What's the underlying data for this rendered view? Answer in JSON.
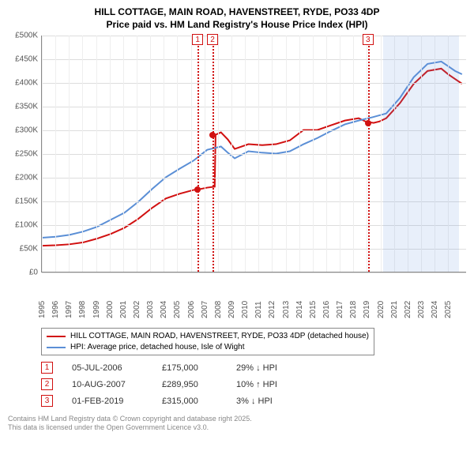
{
  "title": {
    "line1": "HILL COTTAGE, MAIN ROAD, HAVENSTREET, RYDE, PO33 4DP",
    "line2": "Price paid vs. HM Land Registry's House Price Index (HPI)",
    "fontsize": 12
  },
  "chart": {
    "type": "line",
    "background_color": "#ffffff",
    "grid_color": "#dddddd",
    "x": {
      "min": 1995,
      "max": 2025.8,
      "ticks": [
        1995,
        1996,
        1997,
        1998,
        1999,
        2000,
        2001,
        2002,
        2003,
        2004,
        2005,
        2006,
        2007,
        2008,
        2009,
        2010,
        2011,
        2012,
        2013,
        2014,
        2015,
        2016,
        2017,
        2018,
        2019,
        2020,
        2021,
        2022,
        2023,
        2024,
        2025
      ]
    },
    "y": {
      "min": 0,
      "max": 500000,
      "step": 50000,
      "labels": [
        "£0",
        "£50K",
        "£100K",
        "£150K",
        "£200K",
        "£250K",
        "£300K",
        "£350K",
        "£400K",
        "£450K",
        "£500K"
      ]
    },
    "shade": {
      "from": 2020.2,
      "to": 2025.8,
      "color": "rgba(100,150,220,0.15)"
    },
    "series": [
      {
        "id": "price_paid",
        "label": "HILL COTTAGE, MAIN ROAD, HAVENSTREET, RYDE, PO33 4DP (detached house)",
        "color": "#d11010",
        "width": 2,
        "data": [
          [
            1995,
            55000
          ],
          [
            1996,
            56000
          ],
          [
            1997,
            58000
          ],
          [
            1998,
            62000
          ],
          [
            1999,
            70000
          ],
          [
            2000,
            80000
          ],
          [
            2001,
            93000
          ],
          [
            2002,
            112000
          ],
          [
            2003,
            135000
          ],
          [
            2004,
            155000
          ],
          [
            2005,
            165000
          ],
          [
            2006,
            173000
          ],
          [
            2006.5,
            175000
          ],
          [
            2007,
            178000
          ],
          [
            2007.55,
            180000
          ],
          [
            2007.61,
            289950
          ],
          [
            2008,
            295000
          ],
          [
            2008.5,
            280000
          ],
          [
            2009,
            260000
          ],
          [
            2010,
            270000
          ],
          [
            2011,
            268000
          ],
          [
            2012,
            270000
          ],
          [
            2013,
            278000
          ],
          [
            2014,
            300000
          ],
          [
            2015,
            300000
          ],
          [
            2016,
            310000
          ],
          [
            2017,
            320000
          ],
          [
            2018,
            325000
          ],
          [
            2018.5,
            318000
          ],
          [
            2019.08,
            315000
          ],
          [
            2019.5,
            318000
          ],
          [
            2020,
            325000
          ],
          [
            2021,
            357000
          ],
          [
            2022,
            398000
          ],
          [
            2023,
            425000
          ],
          [
            2024,
            430000
          ],
          [
            2024.5,
            418000
          ],
          [
            2025,
            408000
          ],
          [
            2025.5,
            398000
          ]
        ]
      },
      {
        "id": "hpi",
        "label": "HPI: Average price, detached house, Isle of Wight",
        "color": "#5b8fd6",
        "width": 2,
        "data": [
          [
            1995,
            72000
          ],
          [
            1996,
            74000
          ],
          [
            1997,
            78000
          ],
          [
            1998,
            85000
          ],
          [
            1999,
            95000
          ],
          [
            2000,
            110000
          ],
          [
            2001,
            125000
          ],
          [
            2002,
            148000
          ],
          [
            2003,
            175000
          ],
          [
            2004,
            200000
          ],
          [
            2005,
            218000
          ],
          [
            2006,
            235000
          ],
          [
            2007,
            258000
          ],
          [
            2008,
            265000
          ],
          [
            2008.5,
            252000
          ],
          [
            2009,
            240000
          ],
          [
            2010,
            255000
          ],
          [
            2011,
            252000
          ],
          [
            2012,
            250000
          ],
          [
            2013,
            255000
          ],
          [
            2014,
            270000
          ],
          [
            2015,
            283000
          ],
          [
            2016,
            298000
          ],
          [
            2017,
            312000
          ],
          [
            2018,
            320000
          ],
          [
            2019,
            327000
          ],
          [
            2020,
            335000
          ],
          [
            2021,
            368000
          ],
          [
            2022,
            412000
          ],
          [
            2023,
            440000
          ],
          [
            2024,
            445000
          ],
          [
            2024.5,
            435000
          ],
          [
            2025,
            425000
          ],
          [
            2025.5,
            418000
          ]
        ]
      }
    ],
    "markers": [
      {
        "n": "1",
        "year": 2006.5,
        "color": "#d11010"
      },
      {
        "n": "2",
        "year": 2007.6,
        "color": "#d11010"
      },
      {
        "n": "3",
        "year": 2019.08,
        "color": "#d11010"
      }
    ],
    "sale_dots": [
      {
        "year": 2006.5,
        "price": 175000,
        "color": "#d11010"
      },
      {
        "year": 2007.6,
        "price": 289950,
        "color": "#d11010"
      },
      {
        "year": 2019.08,
        "price": 315000,
        "color": "#d11010"
      }
    ]
  },
  "sales": [
    {
      "n": "1",
      "date": "05-JUL-2006",
      "price": "£175,000",
      "hpi": "29% ↓ HPI",
      "color": "#d11010"
    },
    {
      "n": "2",
      "date": "10-AUG-2007",
      "price": "£289,950",
      "hpi": "10% ↑ HPI",
      "color": "#d11010"
    },
    {
      "n": "3",
      "date": "01-FEB-2019",
      "price": "£315,000",
      "hpi": "3% ↓ HPI",
      "color": "#d11010"
    }
  ],
  "footer": {
    "line1": "Contains HM Land Registry data © Crown copyright and database right 2025.",
    "line2": "This data is licensed under the Open Government Licence v3.0."
  }
}
